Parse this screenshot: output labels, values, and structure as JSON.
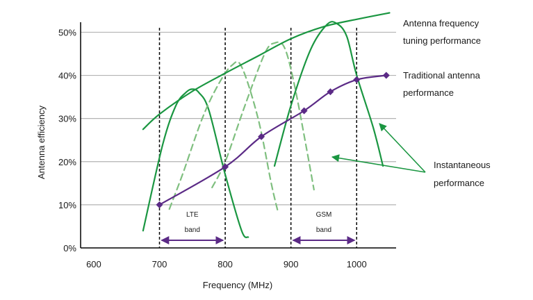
{
  "chart_data": {
    "type": "line",
    "xlabel": "Frequency (MHz)",
    "ylabel": "Antenna efficiency",
    "xlim": [
      580,
      1060
    ],
    "ylim": [
      0,
      52
    ],
    "x_ticks": [
      {
        "value": 600,
        "label": "600"
      },
      {
        "value": 700,
        "label": "700"
      },
      {
        "value": 800,
        "label": "800"
      },
      {
        "value": 900,
        "label": "900"
      },
      {
        "value": 1000,
        "label": "1000"
      }
    ],
    "y_ticks": [
      {
        "value": 0,
        "label": "0%"
      },
      {
        "value": 10,
        "label": "10%"
      },
      {
        "value": 20,
        "label": "20%"
      },
      {
        "value": 30,
        "label": "30%"
      },
      {
        "value": 40,
        "label": "40%"
      },
      {
        "value": 50,
        "label": "50%"
      }
    ],
    "grid": true,
    "series": [
      {
        "name": "Antenna frequency tuning performance",
        "color": "#1a9641",
        "style": "solid",
        "x": [
          675,
          700,
          750,
          800,
          850,
          900,
          950,
          1000,
          1050
        ],
        "y": [
          27.5,
          31,
          36.3,
          40.5,
          44.5,
          48.5,
          51.3,
          53,
          54.5
        ]
      },
      {
        "name": "Traditional antenna performance",
        "color": "#5b2a86",
        "style": "solid-markers",
        "x": [
          700,
          800,
          855,
          920,
          960,
          1000,
          1045
        ],
        "y": [
          10,
          18.8,
          25.8,
          31.8,
          36.2,
          39,
          40
        ]
      }
    ],
    "instantaneous_curves": [
      {
        "style": "solid",
        "x": [
          675,
          705,
          725,
          740,
          750,
          760,
          775,
          800,
          825,
          835
        ],
        "y": [
          4,
          24,
          33,
          36,
          36.8,
          36,
          32,
          17,
          4,
          2.5
        ]
      },
      {
        "style": "dashed",
        "x": [
          715,
          735,
          765,
          790,
          810,
          825,
          850,
          870,
          880
        ],
        "y": [
          9,
          17,
          30,
          38,
          42.3,
          42,
          30,
          15,
          8.5
        ]
      },
      {
        "style": "dashed",
        "x": [
          780,
          800,
          830,
          860,
          875,
          890,
          905,
          925,
          935
        ],
        "y": [
          14,
          20,
          33,
          45,
          47.5,
          46.5,
          38,
          22,
          13.5
        ]
      },
      {
        "style": "solid",
        "x": [
          875,
          900,
          930,
          955,
          970,
          985,
          1000,
          1025,
          1040
        ],
        "y": [
          19,
          33,
          46,
          51.8,
          52,
          49,
          40,
          28,
          19
        ]
      }
    ],
    "band_lines_mhz": [
      700,
      800,
      900,
      1000
    ],
    "bands": [
      {
        "label_line1": "LTE",
        "label_line2": "band",
        "from": 700,
        "to": 800
      },
      {
        "label_line1": "GSM",
        "label_line2": "band",
        "from": 900,
        "to": 1000
      }
    ],
    "annotations": {
      "tuning": [
        "Antenna frequency",
        "tuning performance"
      ],
      "traditional": [
        "Traditional antenna",
        "performance"
      ],
      "instantaneous": [
        "Instantaneous",
        "performance"
      ]
    },
    "colors": {
      "green": "#1a9641",
      "light_green": "#7fbf7f",
      "purple": "#5b2a86",
      "grid": "#b3b3b3",
      "axis": "#000000"
    }
  }
}
